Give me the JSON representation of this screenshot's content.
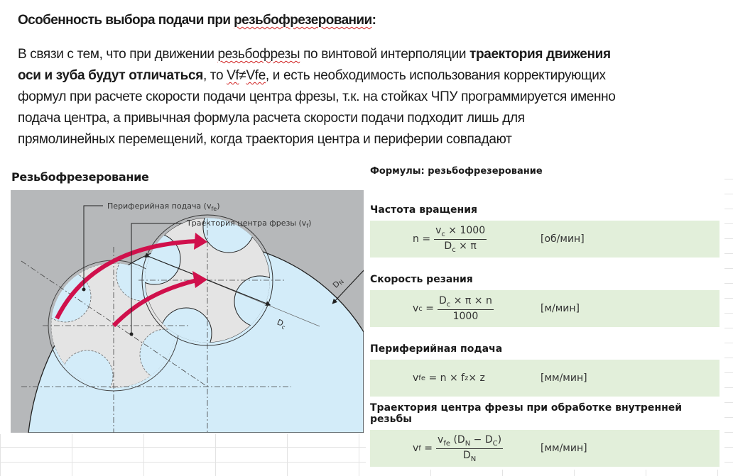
{
  "doc": {
    "title": "Особенность выбора подачи при резьбофрезеровании:",
    "title_plain": "Особенность выбора подачи при ",
    "title_spell": "резьбофрезеровании",
    "title_end": ":",
    "lines": {
      "l1a": "В связи с тем, что при движении ",
      "l1b": "резьбофрезы",
      "l1c": " по винтовой интерполяции ",
      "l1d": "траектория движения",
      "l2a": "оси и зуба будут отличаться",
      "l2b": ", то ",
      "l2c": "Vf",
      "l2d": "≠",
      "l2e": "Vfe",
      "l2f": ", и есть необходимость использования корректирующих",
      "l3": "формул при расчете скорости подачи центра фрезы, т.к. на стойках ЧПУ программируется именно",
      "l4": "подача центра, а привычная формула расчета скорости подачи подходит лишь для",
      "l5": "прямолинейных перемещений, когда траектория центра и периферии совпадают"
    }
  },
  "diagram": {
    "title": "Резьбофрезерование",
    "label_peripheral": "Периферийная подача (v",
    "label_peripheral_sub": "fe",
    "label_center": "Траектория центра фрезы (v",
    "label_center_sub": "f",
    "label_close": ")",
    "dn": "D",
    "dn_sub": "N",
    "dc": "D",
    "dc_sub": "c",
    "colors": {
      "workpiece": "#b6b8ba",
      "hole": "#d3ecf9",
      "cutter": "#e4e4e4",
      "arrow": "#d0104c"
    }
  },
  "formulas": {
    "title": "Формулы: резьбофрезерование",
    "items": [
      {
        "heading": "Частота вращения",
        "lhs": "n",
        "lhs_sub": "",
        "num": "v",
        "num_sub": "c",
        "num_rest": " × 1000",
        "den": "D",
        "den_sub": "c",
        "den_rest": " × π",
        "unit": "[об/мин]"
      },
      {
        "heading": "Скорость резания",
        "lhs": "v",
        "lhs_sub": "c",
        "num": "D",
        "num_sub": "c",
        "num_rest": " × π × n",
        "den": "1000",
        "den_sub": "",
        "den_rest": "",
        "unit": "[м/мин]"
      },
      {
        "heading": "Периферийная подача",
        "lhs": "v",
        "lhs_sub": "fe",
        "rhs": "= n × f",
        "rhs_sub": "z",
        "rhs_rest": " × z",
        "unit": "[мм/мин]"
      },
      {
        "heading": "Траектория центра фрезы при обработке внутренней резьбы",
        "lhs": "v",
        "lhs_sub": "f",
        "num": "v",
        "num_sub": "fe",
        "num_rest": " (D",
        "num_sub2": "N",
        "num_rest2": " − D",
        "num_sub3": "C",
        "num_rest3": ")",
        "den": "D",
        "den_sub": "N",
        "den_rest": "",
        "unit": "[мм/мин]"
      }
    ]
  }
}
